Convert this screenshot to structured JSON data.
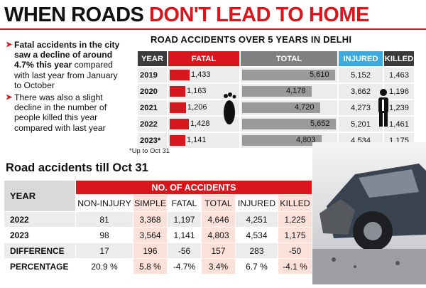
{
  "title": {
    "part1": "WHEN ROADS",
    "part2": "DON'T LEAD TO HOME"
  },
  "bullets": [
    {
      "bold": "Fatal accidents in the city saw a decline of around 4.7% this year",
      "rest": " compared with last year from January to October"
    },
    {
      "bold": "",
      "rest": "There was also a slight decline in the number of people killed this year compared with last year"
    }
  ],
  "chart_data": [
    {
      "type": "bar",
      "title": "ROAD ACCIDENTS OVER 5 YEARS IN DELHI",
      "columns": [
        "YEAR",
        "FATAL",
        "TOTAL",
        "INJURED",
        "KILLED"
      ],
      "categories": [
        "2019",
        "2020",
        "2021",
        "2022",
        "2023*"
      ],
      "series": [
        {
          "name": "FATAL",
          "values": [
            1433,
            1163,
            1206,
            1428,
            1141
          ],
          "labels": [
            "1,433",
            "1,163",
            "1,206",
            "1,428",
            "1,141"
          ]
        },
        {
          "name": "TOTAL",
          "values": [
            5610,
            4178,
            4720,
            5652,
            4803
          ],
          "labels": [
            "5,610",
            "4,178",
            "4,720",
            "5,652",
            "4,803"
          ]
        },
        {
          "name": "INJURED",
          "values": [
            5152,
            3662,
            4273,
            5201,
            4534
          ],
          "labels": [
            "5,152",
            "3,662",
            "4,273",
            "5,201",
            "4,534"
          ]
        },
        {
          "name": "KILLED",
          "values": [
            1463,
            1196,
            1239,
            1461,
            1175
          ],
          "labels": [
            "1,463",
            "1,196",
            "1,239",
            "1,461",
            "1,175"
          ]
        }
      ],
      "note": "*Up to Oct 31"
    },
    {
      "type": "table",
      "title": "Road accidents till Oct 31",
      "header_group": "NO. OF ACCIDENTS",
      "row_header": "YEAR",
      "columns": [
        "NON-INJURY",
        "SIMPLE",
        "FATAL",
        "TOTAL",
        "INJURED",
        "KILLED"
      ],
      "rows": [
        {
          "label": "2022",
          "cells": [
            "81",
            "3,368",
            "1,197",
            "4,646",
            "4,251",
            "1,225"
          ]
        },
        {
          "label": "2023",
          "cells": [
            "98",
            "3,564",
            "1,141",
            "4,803",
            "4,534",
            "1,175"
          ]
        },
        {
          "label": "DIFFERENCE",
          "cells": [
            "17",
            "196",
            "-56",
            "157",
            "283",
            "-50"
          ]
        },
        {
          "label": "PERCENTAGE",
          "cells": [
            "20.9 %",
            "5.8 %",
            "-4.7%",
            "3.4%",
            "6.7 %",
            "-4.1 %"
          ]
        }
      ]
    }
  ],
  "colors": {
    "fatal": "#d8161e",
    "total": "#9a9a9a",
    "injured": "#3fa9de",
    "dark": "#3b3b3b"
  }
}
